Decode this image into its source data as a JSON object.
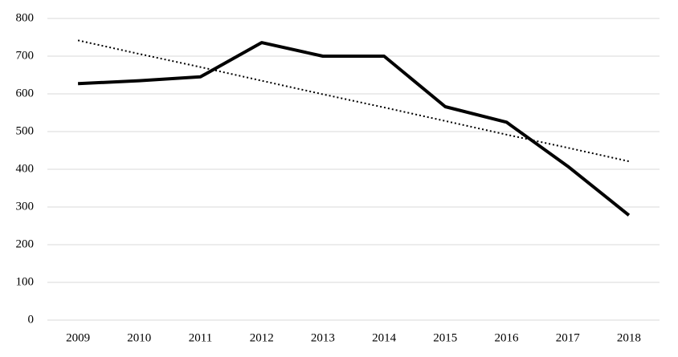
{
  "chart_data": {
    "type": "line",
    "categories": [
      "2009",
      "2010",
      "2011",
      "2012",
      "2013",
      "2014",
      "2015",
      "2016",
      "2017",
      "2018"
    ],
    "series": [
      {
        "color": "#000000",
        "style": "solid",
        "values": [
          627,
          635,
          645,
          736,
          700,
          700,
          566,
          525,
          408,
          278
        ]
      },
      {
        "color": "#000000",
        "style": "dotted",
        "values": [
          742,
          706,
          671,
          635,
          599,
          564,
          528,
          492,
          457,
          421
        ]
      }
    ],
    "ylim": [
      0,
      800
    ],
    "yticks": [
      0,
      100,
      200,
      300,
      400,
      500,
      600,
      700,
      800
    ],
    "grid": true,
    "grid_color": "#d9d9d9"
  }
}
